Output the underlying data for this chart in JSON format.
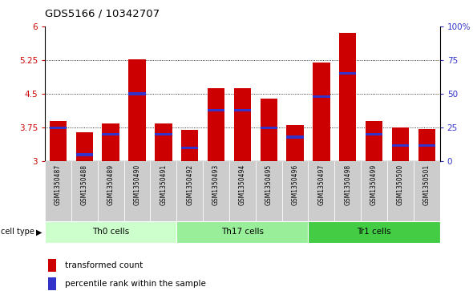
{
  "title": "GDS5166 / 10342707",
  "samples": [
    "GSM1350487",
    "GSM1350488",
    "GSM1350489",
    "GSM1350490",
    "GSM1350491",
    "GSM1350492",
    "GSM1350493",
    "GSM1350494",
    "GSM1350495",
    "GSM1350496",
    "GSM1350497",
    "GSM1350498",
    "GSM1350499",
    "GSM1350500",
    "GSM1350501"
  ],
  "transformed_counts": [
    3.9,
    3.65,
    3.85,
    5.27,
    3.85,
    3.7,
    4.63,
    4.63,
    4.4,
    3.8,
    5.2,
    5.85,
    3.9,
    3.75,
    3.72
  ],
  "percentile_ranks": [
    25,
    5,
    20,
    50,
    20,
    10,
    38,
    38,
    25,
    18,
    48,
    65,
    20,
    12,
    12
  ],
  "cell_groups": [
    {
      "label": "Th0 cells",
      "start": 0,
      "end": 5,
      "color": "#ccffcc"
    },
    {
      "label": "Th17 cells",
      "start": 5,
      "end": 10,
      "color": "#99ee99"
    },
    {
      "label": "Tr1 cells",
      "start": 10,
      "end": 15,
      "color": "#44cc44"
    }
  ],
  "ymin": 3.0,
  "ymax": 6.0,
  "yticks": [
    3,
    3.75,
    4.5,
    5.25,
    6
  ],
  "ytick_labels": [
    "3",
    "3.75",
    "4.5",
    "5.25",
    "6"
  ],
  "right_yticks": [
    0,
    25,
    50,
    75,
    100
  ],
  "right_ytick_labels": [
    "0",
    "25",
    "50",
    "75",
    "100%"
  ],
  "bar_color": "#cc0000",
  "blue_color": "#3333cc",
  "bar_width": 0.65,
  "cell_type_label": "cell type",
  "legend_items": [
    {
      "color": "#cc0000",
      "label": "transformed count"
    },
    {
      "color": "#3333cc",
      "label": "percentile rank within the sample"
    }
  ],
  "tick_bg_color": "#cccccc",
  "plot_bg": "#ffffff"
}
